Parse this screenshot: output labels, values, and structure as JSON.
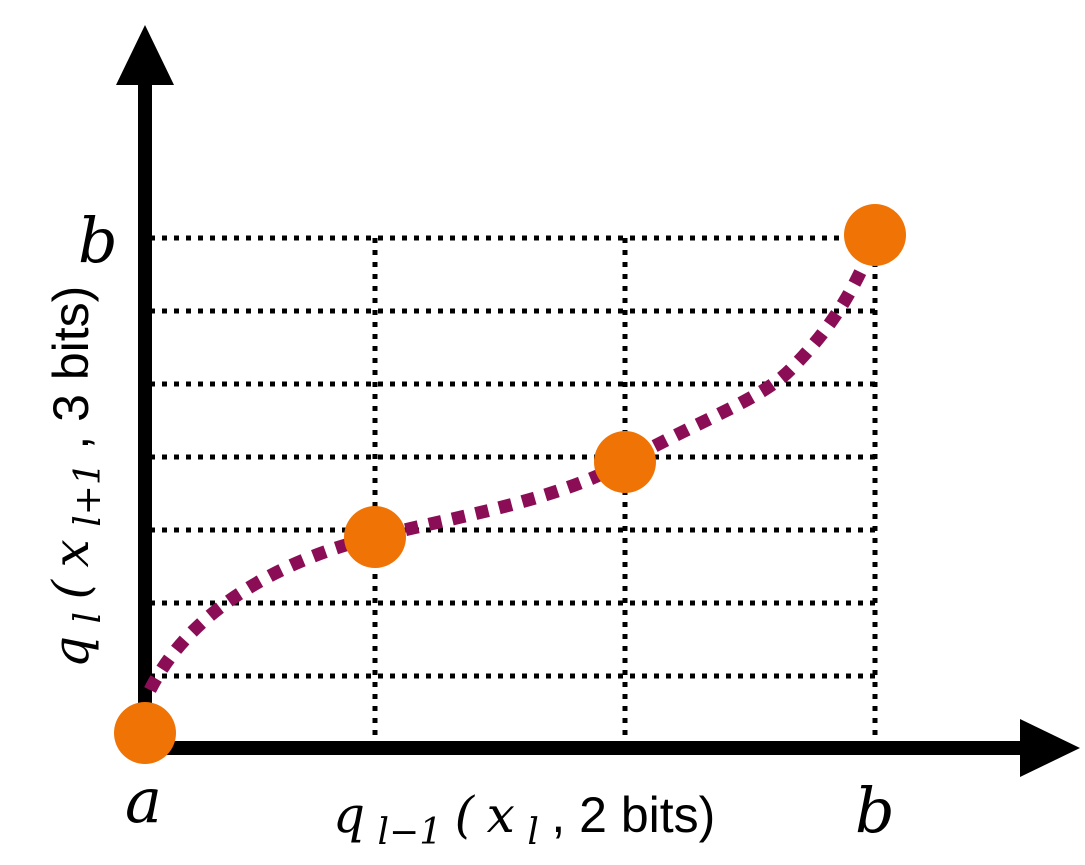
{
  "colors": {
    "axis": "#000000",
    "grid": "#000000",
    "curve": "#8b0d55",
    "point": "#f07306"
  },
  "labels": {
    "x_start": "a",
    "x_end": "b",
    "y_top": "b"
  },
  "x_axis_label": {
    "q": "q",
    "q_sub": "l−1",
    "open": "(",
    "x": "x",
    "x_sub": "l",
    "rest": ", 2 bits)"
  },
  "y_axis_label": {
    "q": "q",
    "q_sub": "l",
    "open": "(",
    "x": "x",
    "x_sub": "l+1",
    "rest": ", 3 bits)"
  },
  "quantization": {
    "x_bits": 2,
    "y_bits": 3
  }
}
